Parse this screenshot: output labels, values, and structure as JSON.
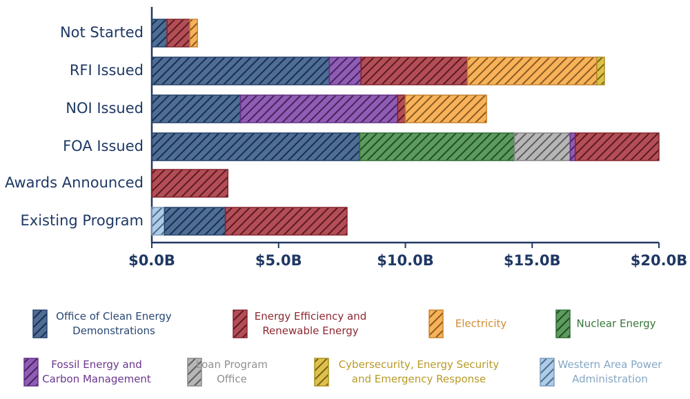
{
  "chart_data": {
    "type": "stacked-bar-horizontal",
    "categories": [
      "Not Started",
      "RFI Issued",
      "NOI Issued",
      "FOA Issued",
      "Awards Announced",
      "Existing Program"
    ],
    "series": [
      {
        "name": "Office of Clean Energy Demonstrations",
        "color": "#2f5485",
        "values": [
          0.6,
          7.0,
          3.5,
          8.2,
          null,
          2.4
        ]
      },
      {
        "name": "Energy Efficiency and Renewable Energy",
        "color": "#a62f3a",
        "values": [
          0.9,
          4.2,
          0.3,
          3.3,
          3.0,
          4.8
        ]
      },
      {
        "name": "Electricity",
        "color": "#f7a53c",
        "values": [
          0.3,
          5.1,
          3.2,
          null,
          null,
          null
        ]
      },
      {
        "name": "Nuclear Energy",
        "color": "#3f8a42",
        "values": [
          null,
          null,
          null,
          6.1,
          null,
          null
        ]
      },
      {
        "name": "Fossil Energy and Carbon Management",
        "color": "#7d3fa8",
        "values": [
          null,
          1.25,
          6.2,
          0.2,
          null,
          null
        ]
      },
      {
        "name": "Loan Program Office",
        "color": "#a9a9a9",
        "values": [
          null,
          null,
          null,
          2.2,
          null,
          null
        ]
      },
      {
        "name": "Cybersecurity, Energy Security and Emergency Response",
        "color": "#d9b52c",
        "values": [
          null,
          0.3,
          null,
          null,
          null,
          null
        ]
      },
      {
        "name": "Western Area Power Administration",
        "color": "#9cc3e8",
        "values": [
          null,
          null,
          null,
          null,
          null,
          0.5
        ]
      }
    ],
    "xlim": [
      0,
      20
    ],
    "xticks": [
      {
        "value": 0,
        "label": "$0.0B"
      },
      {
        "value": 5,
        "label": "$5.0B"
      },
      {
        "value": 10,
        "label": "$10.0B"
      },
      {
        "value": 15,
        "label": "$15.0B"
      },
      {
        "value": 20,
        "label": "$20.0B"
      }
    ],
    "grid": false
  }
}
